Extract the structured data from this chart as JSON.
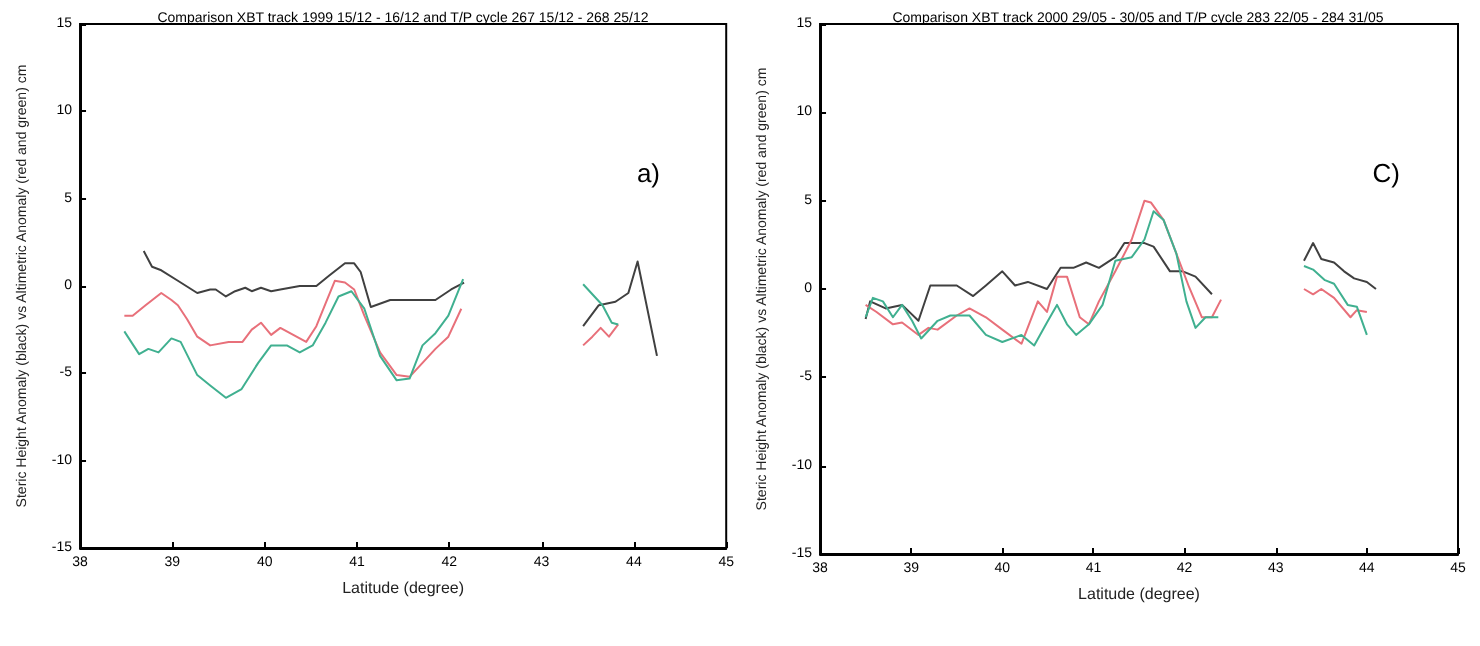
{
  "chart_data": [
    {
      "type": "line",
      "title": "Comparison XBT track 1999 15/12 - 16/12 and T/P cycle 267 15/12 - 268 25/12",
      "xlabel": "Latitude (degree)",
      "ylabel": "Steric Height Anomaly (black) vs Altimetric Anomaly (red and green) cm",
      "annotations": [
        "a)"
      ],
      "xlim": [
        38,
        45
      ],
      "ylim": [
        -15,
        15
      ],
      "xticks": [
        38,
        39,
        40,
        41,
        42,
        43,
        44,
        45
      ],
      "yticks": [
        -15,
        -10,
        -5,
        0,
        5,
        10,
        15
      ],
      "marker": "none",
      "series": [
        {
          "color": "#404040",
          "x": [
            38.69,
            38.78,
            38.88,
            39.06,
            39.27,
            39.41,
            39.47,
            39.58,
            39.68,
            39.79,
            39.86,
            39.96,
            40.07,
            40.17,
            40.38,
            40.56,
            40.7,
            40.87,
            40.97,
            41.04,
            41.15,
            41.36,
            41.57,
            41.85,
            42.02,
            42.16,
            42.8,
            43.45,
            43.62,
            43.8,
            43.94,
            44.04,
            44.25
          ],
          "values": [
            2.0,
            1.1,
            0.9,
            0.3,
            -0.4,
            -0.2,
            -0.2,
            -0.6,
            -0.3,
            -0.1,
            -0.3,
            -0.1,
            -0.3,
            -0.2,
            0.0,
            0.0,
            0.6,
            1.3,
            1.3,
            0.8,
            -1.2,
            -0.8,
            -0.8,
            -0.8,
            -0.2,
            0.2,
            null,
            -2.3,
            -1.1,
            -0.9,
            -0.4,
            1.4,
            -4.0
          ]
        },
        {
          "color": "#e8707a",
          "x": [
            38.48,
            38.57,
            38.71,
            38.88,
            38.99,
            39.06,
            39.16,
            39.27,
            39.41,
            39.61,
            39.76,
            39.86,
            39.96,
            40.07,
            40.17,
            40.45,
            40.56,
            40.66,
            40.76,
            40.87,
            40.97,
            41.08,
            41.25,
            41.43,
            41.57,
            41.71,
            41.85,
            41.99,
            42.13,
            42.8,
            43.45,
            43.55,
            43.64,
            43.73,
            43.83
          ],
          "values": [
            -1.7,
            -1.7,
            -1.1,
            -0.4,
            -0.8,
            -1.1,
            -1.9,
            -2.9,
            -3.4,
            -3.2,
            -3.2,
            -2.5,
            -2.1,
            -2.8,
            -2.4,
            -3.2,
            -2.3,
            -1.0,
            0.3,
            0.2,
            -0.2,
            -1.7,
            -3.8,
            -5.1,
            -5.2,
            -4.4,
            -3.6,
            -2.9,
            -1.3,
            null,
            -3.4,
            -2.9,
            -2.4,
            -2.9,
            -2.2
          ]
        },
        {
          "color": "#40b090",
          "x": [
            38.48,
            38.64,
            38.74,
            38.85,
            38.99,
            39.09,
            39.27,
            39.41,
            39.58,
            39.75,
            39.93,
            40.07,
            40.24,
            40.38,
            40.52,
            40.66,
            40.8,
            40.94,
            41.08,
            41.25,
            41.43,
            41.57,
            41.71,
            41.85,
            41.99,
            42.15,
            42.8,
            43.45,
            43.66,
            43.76,
            43.83
          ],
          "values": [
            -2.6,
            -3.9,
            -3.6,
            -3.8,
            -3.0,
            -3.2,
            -5.1,
            -5.7,
            -6.4,
            -5.9,
            -4.4,
            -3.4,
            -3.4,
            -3.8,
            -3.4,
            -2.1,
            -0.6,
            -0.3,
            -1.3,
            -4.0,
            -5.4,
            -5.3,
            -3.4,
            -2.7,
            -1.7,
            0.4,
            null,
            0.1,
            -1.1,
            -2.1,
            -2.2
          ]
        }
      ]
    },
    {
      "type": "line",
      "title": "Comparison XBT track 2000 29/05 - 30/05 and T/P cycle 283 22/05 - 284 31/05",
      "xlabel": "Latitude (degree)",
      "ylabel": "Steric Height Anomaly (black) vs Altimetric Anomaly (red and green) cm",
      "annotations": [
        "C)"
      ],
      "xlim": [
        38,
        45
      ],
      "ylim": [
        -15,
        15
      ],
      "xticks": [
        38,
        39,
        40,
        41,
        42,
        43,
        44,
        45
      ],
      "yticks": [
        -15,
        -10,
        -5,
        0,
        5,
        10,
        15
      ],
      "marker": "none",
      "series": [
        {
          "color": "#404040",
          "x": [
            38.5,
            38.55,
            38.72,
            38.9,
            39.08,
            39.21,
            39.36,
            39.5,
            39.68,
            39.82,
            40.0,
            40.14,
            40.28,
            40.49,
            40.64,
            40.78,
            40.92,
            41.06,
            41.24,
            41.34,
            41.56,
            41.66,
            41.84,
            41.98,
            42.12,
            42.3,
            42.8,
            43.31,
            43.41,
            43.5,
            43.64,
            43.75,
            43.86,
            44.0,
            44.1
          ],
          "values": [
            -1.7,
            -0.7,
            -1.1,
            -0.9,
            -1.8,
            0.2,
            0.2,
            0.2,
            -0.4,
            0.2,
            1.0,
            0.2,
            0.4,
            0.0,
            1.2,
            1.2,
            1.5,
            1.2,
            1.8,
            2.6,
            2.6,
            2.4,
            1.0,
            1.0,
            0.7,
            -0.3,
            null,
            1.6,
            2.6,
            1.7,
            1.5,
            1.0,
            0.6,
            0.4,
            0.0
          ]
        },
        {
          "color": "#e8707a",
          "x": [
            38.5,
            38.62,
            38.8,
            38.9,
            39.08,
            39.19,
            39.29,
            39.5,
            39.64,
            39.82,
            40.0,
            40.21,
            40.39,
            40.49,
            40.6,
            40.71,
            40.85,
            40.95,
            41.06,
            41.24,
            41.42,
            41.56,
            41.63,
            41.77,
            41.91,
            42.05,
            42.19,
            42.3,
            42.4,
            42.8,
            43.31,
            43.41,
            43.5,
            43.64,
            43.82,
            43.89,
            44.0
          ],
          "values": [
            -0.9,
            -1.3,
            -2.0,
            -1.9,
            -2.6,
            -2.2,
            -2.3,
            -1.5,
            -1.1,
            -1.6,
            -2.3,
            -3.1,
            -0.7,
            -1.3,
            0.7,
            0.7,
            -1.6,
            -2.0,
            -0.7,
            1.0,
            2.8,
            5.0,
            4.9,
            3.9,
            2.0,
            0.1,
            -1.6,
            -1.6,
            -0.6,
            null,
            0.0,
            -0.3,
            0.0,
            -0.5,
            -1.6,
            -1.2,
            -1.3
          ]
        },
        {
          "color": "#40b090",
          "x": [
            38.5,
            38.58,
            38.69,
            38.8,
            38.9,
            39.01,
            39.11,
            39.29,
            39.43,
            39.64,
            39.82,
            40.0,
            40.21,
            40.35,
            40.49,
            40.6,
            40.71,
            40.81,
            40.95,
            41.1,
            41.24,
            41.42,
            41.56,
            41.66,
            41.77,
            41.91,
            42.02,
            42.12,
            42.23,
            42.37,
            42.8,
            43.31,
            43.41,
            43.54,
            43.64,
            43.79,
            43.89,
            44.0
          ],
          "values": [
            -1.6,
            -0.5,
            -0.7,
            -1.6,
            -0.9,
            -1.8,
            -2.8,
            -1.8,
            -1.5,
            -1.5,
            -2.6,
            -3.0,
            -2.6,
            -3.2,
            -1.9,
            -0.9,
            -2.0,
            -2.6,
            -2.0,
            -0.9,
            1.6,
            1.8,
            2.8,
            4.4,
            3.9,
            2.0,
            -0.7,
            -2.2,
            -1.6,
            -1.6,
            null,
            1.3,
            1.1,
            0.5,
            0.3,
            -0.9,
            -1.0,
            -2.6
          ]
        }
      ]
    }
  ]
}
